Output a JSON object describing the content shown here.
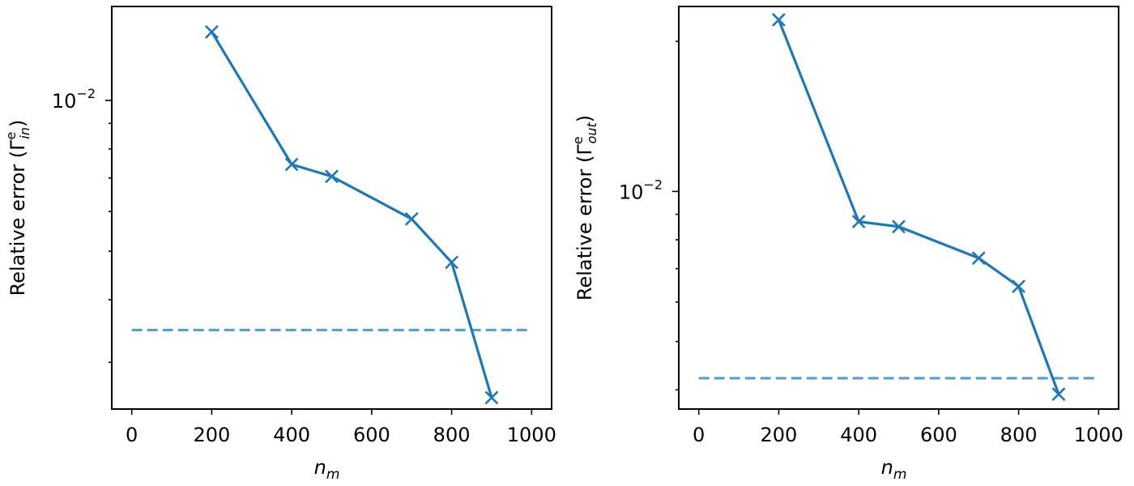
{
  "chart_data": [
    {
      "type": "line",
      "yscale": "log",
      "xlabel": "n",
      "xlabel_subscript": "m",
      "ylabel_prefix": "Relative error (Γ",
      "ylabel_sup": "e",
      "ylabel_sub": "in",
      "ylabel_suffix": ")",
      "xlim": [
        -50,
        1050
      ],
      "ylim": [
        0.00242,
        0.0154
      ],
      "xticks": [
        0,
        200,
        400,
        600,
        800,
        1000
      ],
      "xtick_labels": [
        "0",
        "200",
        "400",
        "600",
        "800",
        "1000"
      ],
      "yticks_labeled": [
        {
          "value": 0.01,
          "base": "10",
          "exp": "−2"
        }
      ],
      "yticks_minor": [
        0.006,
        0.007,
        0.008,
        0.009,
        0.002,
        0.003,
        0.004,
        0.005
      ],
      "series": [
        {
          "name": "relative error",
          "x": [
            200,
            400,
            500,
            700,
            800,
            900
          ],
          "y": [
            0.0137,
            0.00745,
            0.00705,
            0.0058,
            0.00475,
            0.00255
          ],
          "color": "#1f77b4",
          "marker": "x"
        }
      ],
      "reference_line": {
        "y": 0.00348,
        "x": [
          0,
          1000
        ],
        "color": "#5b9ec9",
        "style": "dashed"
      }
    },
    {
      "type": "line",
      "yscale": "log",
      "xlabel": "n",
      "xlabel_subscript": "m",
      "ylabel_prefix": "Relative error (Γ",
      "ylabel_sup": "e",
      "ylabel_sub": "out",
      "ylabel_suffix": ")",
      "xlim": [
        -50,
        1050
      ],
      "ylim": [
        0.00366,
        0.0235
      ],
      "xticks": [
        0,
        200,
        400,
        600,
        800,
        1000
      ],
      "xtick_labels": [
        "0",
        "200",
        "400",
        "600",
        "800",
        "1000"
      ],
      "yticks_labeled": [
        {
          "value": 0.01,
          "base": "10",
          "exp": "−2"
        }
      ],
      "yticks_minor": [
        0.02,
        0.009,
        0.008,
        0.007,
        0.006,
        0.005,
        0.004
      ],
      "series": [
        {
          "name": "relative error",
          "x": [
            200,
            400,
            500,
            700,
            800,
            900
          ],
          "y": [
            0.0221,
            0.0087,
            0.0085,
            0.00735,
            0.00645,
            0.00392
          ],
          "color": "#1f77b4",
          "marker": "x"
        }
      ],
      "reference_line": {
        "y": 0.00422,
        "x": [
          0,
          1000
        ],
        "color": "#5b9ec9",
        "style": "dashed"
      }
    }
  ]
}
